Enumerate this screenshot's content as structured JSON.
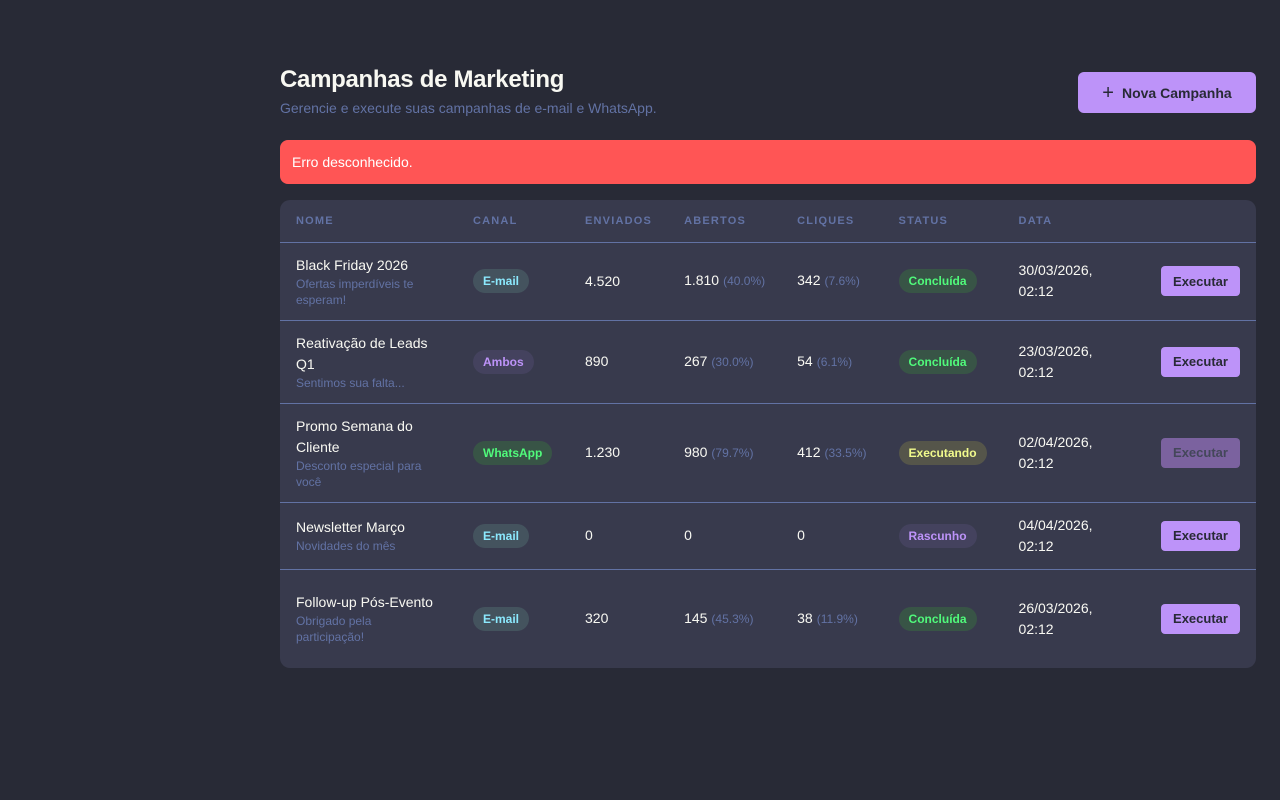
{
  "header": {
    "title": "Campanhas de Marketing",
    "subtitle": "Gerencie e execute suas campanhas de e-mail e WhatsApp.",
    "new_button": "Nova Campanha",
    "new_icon": "+"
  },
  "alert": {
    "message": "Erro desconhecido."
  },
  "colors": {
    "background": "#282a36",
    "accent": "#bd93f9",
    "error": "#ff5555",
    "success": "#50fa7b",
    "info": "#8be9fd",
    "warning": "#f1fa8c",
    "muted": "#6272a4"
  },
  "table": {
    "columns": [
      "NOME",
      "CANAL",
      "ENVIADOS",
      "ABERTOS",
      "CLIQUES",
      "STATUS",
      "DATA"
    ],
    "rows": [
      {
        "name": "Black Friday 2026",
        "desc": "Ofertas imperdíveis te esperam!",
        "channel": "E-mail",
        "sent": "4.520",
        "opened": "1.810",
        "opened_pct": "(40.0%)",
        "clicks": "342",
        "clicks_pct": "(7.6%)",
        "status": "Concluída",
        "date": "30/03/2026, 02:12",
        "action": "Executar"
      },
      {
        "name": "Reativação de Leads Q1",
        "desc": "Sentimos sua falta...",
        "channel": "Ambos",
        "sent": "890",
        "opened": "267",
        "opened_pct": "(30.0%)",
        "clicks": "54",
        "clicks_pct": "(6.1%)",
        "status": "Concluída",
        "date": "23/03/2026, 02:12",
        "action": "Executar"
      },
      {
        "name": "Promo Semana do Cliente",
        "desc": "Desconto especial para você",
        "channel": "WhatsApp",
        "sent": "1.230",
        "opened": "980",
        "opened_pct": "(79.7%)",
        "clicks": "412",
        "clicks_pct": "(33.5%)",
        "status": "Executando",
        "date": "02/04/2026, 02:12",
        "action": "Executar"
      },
      {
        "name": "Newsletter Março",
        "desc": "Novidades do mês",
        "channel": "E-mail",
        "sent": "0",
        "opened": "0",
        "clicks": "0",
        "status": "Rascunho",
        "date": "04/04/2026, 02:12",
        "action": "Executar"
      },
      {
        "name": "Follow-up Pós-Evento",
        "desc": "Obrigado pela participação!",
        "channel": "E-mail",
        "sent": "320",
        "opened": "145",
        "opened_pct": "(45.3%)",
        "clicks": "38",
        "clicks_pct": "(11.9%)",
        "status": "Concluída",
        "date": "26/03/2026, 02:12",
        "action": "Executar"
      }
    ]
  }
}
